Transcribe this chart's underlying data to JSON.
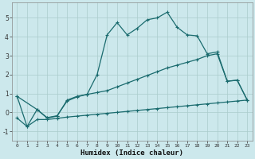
{
  "xlabel": "Humidex (Indice chaleur)",
  "xlim": [
    -0.5,
    23.5
  ],
  "ylim": [
    -1.5,
    5.8
  ],
  "xticks": [
    0,
    1,
    2,
    3,
    4,
    5,
    6,
    7,
    8,
    9,
    10,
    11,
    12,
    13,
    14,
    15,
    16,
    17,
    18,
    19,
    20,
    21,
    22,
    23
  ],
  "yticks": [
    -1,
    0,
    1,
    2,
    3,
    4,
    5
  ],
  "bg_color": "#cce8ec",
  "grid_color": "#aacccc",
  "line_color": "#1a6b6e",
  "line1_x": [
    0,
    1,
    2,
    3,
    4,
    5,
    6,
    7,
    8,
    9,
    10,
    11,
    12,
    13,
    14,
    15,
    16,
    17,
    18,
    19,
    20,
    21,
    22,
    23
  ],
  "line1_y": [
    0.85,
    -0.75,
    0.15,
    -0.3,
    -0.2,
    0.65,
    0.85,
    0.95,
    2.0,
    4.1,
    4.75,
    4.1,
    4.45,
    4.9,
    5.0,
    5.3,
    4.5,
    4.1,
    4.05,
    3.1,
    3.2,
    1.65,
    1.7,
    0.65
  ],
  "line2_x": [
    0,
    2,
    3,
    4,
    5,
    6,
    7,
    8,
    9,
    10,
    11,
    12,
    13,
    14,
    15,
    16,
    17,
    18,
    19,
    20,
    21,
    22,
    23
  ],
  "line2_y": [
    0.85,
    0.15,
    -0.28,
    -0.18,
    0.6,
    0.82,
    0.95,
    1.05,
    1.15,
    1.35,
    1.55,
    1.75,
    1.95,
    2.15,
    2.35,
    2.5,
    2.65,
    2.8,
    3.0,
    3.1,
    1.65,
    1.7,
    0.65
  ],
  "line3_x": [
    0,
    1,
    2,
    3,
    4,
    5,
    6,
    7,
    8,
    9,
    10,
    11,
    12,
    13,
    14,
    15,
    16,
    17,
    18,
    19,
    20,
    21,
    22,
    23
  ],
  "line3_y": [
    -0.3,
    -0.75,
    -0.38,
    -0.38,
    -0.32,
    -0.25,
    -0.2,
    -0.15,
    -0.1,
    -0.05,
    0.0,
    0.05,
    0.1,
    0.15,
    0.2,
    0.25,
    0.3,
    0.35,
    0.4,
    0.45,
    0.5,
    0.55,
    0.6,
    0.65
  ],
  "marker": "+",
  "markersize": 3.5,
  "linewidth": 0.9
}
